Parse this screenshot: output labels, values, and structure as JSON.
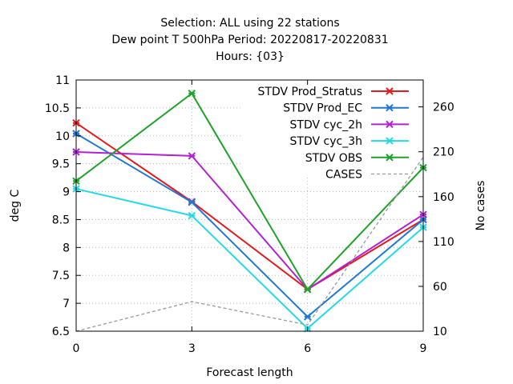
{
  "chart_data": {
    "type": "line",
    "title_lines": [
      "Selection: ALL using    22 stations",
      "Dew point T 500hPa   Period: 20220817-20220831",
      "Hours: {03}"
    ],
    "xlabel": "Forecast length",
    "ylabel": "deg C",
    "y2label": "No cases",
    "x": [
      0,
      3,
      6,
      9
    ],
    "xlim": [
      0,
      9
    ],
    "ylim": [
      6.5,
      11
    ],
    "y2lim": [
      10,
      290
    ],
    "x_ticks": [
      "0",
      "3",
      "6",
      "9"
    ],
    "y_ticks": [
      6.5,
      7,
      7.5,
      8,
      8.5,
      9,
      9.5,
      10,
      10.5,
      11
    ],
    "y_tick_labels": [
      "6.5",
      "7",
      "7.5",
      "8",
      "8.5",
      "9",
      "9.5",
      "10",
      "10.5",
      "11"
    ],
    "y2_ticks": [
      10,
      60,
      110,
      160,
      210,
      260
    ],
    "y2_tick_labels": [
      "10",
      "60",
      "110",
      "160",
      "210",
      "260"
    ],
    "grid": true,
    "legend_position": "top-right",
    "series": [
      {
        "name": "STDV Prod_Stratus",
        "color": "#e41a1c",
        "values": [
          10.23,
          8.82,
          7.25,
          8.5
        ],
        "axis": "y"
      },
      {
        "name": "STDV Prod_EC",
        "color": "#1f77d6",
        "values": [
          10.04,
          8.81,
          6.76,
          8.5
        ],
        "axis": "y"
      },
      {
        "name": "STDV cyc_2h",
        "color": "#b320d6",
        "values": [
          9.71,
          9.64,
          7.25,
          8.59
        ],
        "axis": "y"
      },
      {
        "name": "STDV cyc_3h",
        "color": "#22d9e8",
        "values": [
          9.05,
          8.57,
          6.55,
          8.36
        ],
        "axis": "y"
      },
      {
        "name": "STDV OBS",
        "color": "#1fa22a",
        "values": [
          9.19,
          10.76,
          7.25,
          9.43
        ],
        "axis": "y"
      },
      {
        "name": "CASES",
        "color": "#999999",
        "values": [
          10,
          43,
          17,
          204
        ],
        "axis": "y2",
        "dashed": true
      }
    ]
  }
}
